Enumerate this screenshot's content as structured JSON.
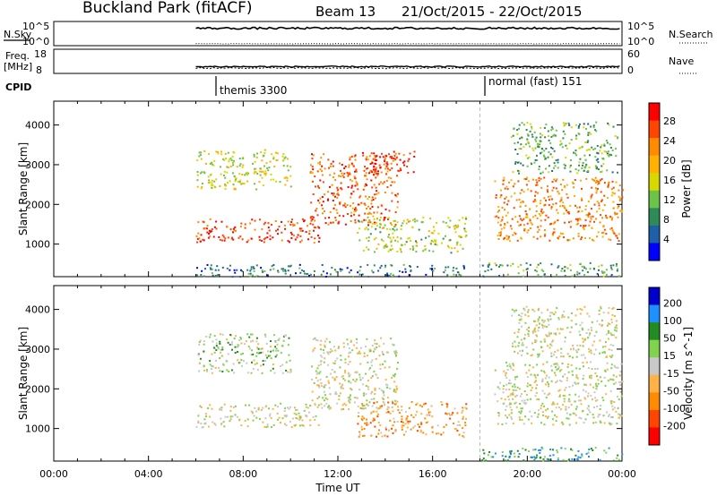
{
  "header": {
    "station": "Buckland Park (fitACF)",
    "beam": "Beam 13",
    "dates": "21/Oct/2015 - 22/Oct/2015"
  },
  "panels_top": {
    "nsky_label": "N.Sky",
    "nsky_ticks": [
      "10^5",
      "10^0"
    ],
    "nsearch_label": "N.Search",
    "nsearch_ticks": [
      "10^5",
      "10^0"
    ],
    "freq_label_line1": "Freq.",
    "freq_label_line2": "[MHz]",
    "freq_ticks": [
      "18",
      "8"
    ],
    "nave_label": "Nave",
    "nave_ticks": [
      "60",
      "0"
    ],
    "cpid_label": "CPID",
    "cpid_segments": [
      {
        "label": "themis 3300",
        "start": "06:00"
      },
      {
        "label": "normal (fast) 151",
        "start": "18:00"
      }
    ]
  },
  "chart_data": [
    {
      "type": "heatmap",
      "quantity": "Power",
      "ylabel": "Slant Range [km]",
      "xlabel": "Time UT",
      "x_ticks": [
        "00:00",
        "04:00",
        "08:00",
        "12:00",
        "16:00",
        "20:00",
        "00:00"
      ],
      "x_range_hours": [
        0,
        24
      ],
      "y_ticks": [
        1000,
        2000,
        3000,
        4000
      ],
      "ylim": [
        180,
        4600
      ],
      "colorbar_label": "Power [dB]",
      "colorbar_ticks": [
        "28",
        "24",
        "20",
        "16",
        "12",
        "8",
        "4"
      ],
      "colorbar_colors": [
        "#ff0000",
        "#ff4500",
        "#ff8c00",
        "#ffb000",
        "#d8d800",
        "#6cc34a",
        "#2e8b57",
        "#1e5fa8",
        "#0000ff"
      ],
      "data_gap_hours": [
        17.5,
        18.0
      ],
      "regions": [
        {
          "t": [
            6.0,
            11.2
          ],
          "r": [
            1050,
            1650
          ],
          "level": 0.9
        },
        {
          "t": [
            6.0,
            10.0
          ],
          "r": [
            2400,
            3400
          ],
          "level": 0.5
        },
        {
          "t": [
            10.8,
            14.5
          ],
          "r": [
            1500,
            3300
          ],
          "level": 0.85
        },
        {
          "t": [
            13.0,
            15.2
          ],
          "r": [
            2800,
            3400
          ],
          "level": 0.95
        },
        {
          "t": [
            12.8,
            17.4
          ],
          "r": [
            800,
            1700
          ],
          "level": 0.45
        },
        {
          "t": [
            18.6,
            24.0
          ],
          "r": [
            1100,
            2700
          ],
          "level": 0.75
        },
        {
          "t": [
            19.3,
            23.8
          ],
          "r": [
            2800,
            4100
          ],
          "level": 0.35
        },
        {
          "t": [
            6.0,
            17.4
          ],
          "r": [
            200,
            500
          ],
          "level": 0.2
        },
        {
          "t": [
            18.0,
            24.0
          ],
          "r": [
            200,
            550
          ],
          "level": 0.3
        }
      ]
    },
    {
      "type": "heatmap",
      "quantity": "Velocity",
      "ylabel": "Slant Range [km]",
      "xlabel": "Time UT",
      "x_ticks": [
        "00:00",
        "04:00",
        "08:00",
        "12:00",
        "16:00",
        "20:00",
        "00:00"
      ],
      "x_range_hours": [
        0,
        24
      ],
      "y_ticks": [
        1000,
        2000,
        3000,
        4000
      ],
      "ylim": [
        180,
        4600
      ],
      "colorbar_label": "Velocity [m s^-1]",
      "colorbar_ticks": [
        "200",
        "100",
        "50",
        "15",
        "-15",
        "-50",
        "-100",
        "-200"
      ],
      "colorbar_colors": [
        "#0000cd",
        "#1e90ff",
        "#228b22",
        "#7fd34e",
        "#c8c8c8",
        "#ffb347",
        "#ff8c00",
        "#ff4500",
        "#ff0000"
      ],
      "data_gap_hours": [
        17.5,
        18.0
      ],
      "regions": [
        {
          "t": [
            6.0,
            11.2
          ],
          "r": [
            1050,
            1650
          ],
          "level": 0.5
        },
        {
          "t": [
            6.0,
            10.0
          ],
          "r": [
            2400,
            3400
          ],
          "level": 0.55
        },
        {
          "t": [
            10.8,
            14.5
          ],
          "r": [
            1500,
            3300
          ],
          "level": 0.5
        },
        {
          "t": [
            12.8,
            17.4
          ],
          "r": [
            800,
            1700
          ],
          "level": 0.3
        },
        {
          "t": [
            18.6,
            24.0
          ],
          "r": [
            1100,
            2700
          ],
          "level": 0.5
        },
        {
          "t": [
            19.3,
            23.8
          ],
          "r": [
            2800,
            4100
          ],
          "level": 0.5
        },
        {
          "t": [
            18.0,
            24.0
          ],
          "r": [
            200,
            550
          ],
          "level": 0.75
        }
      ]
    }
  ]
}
